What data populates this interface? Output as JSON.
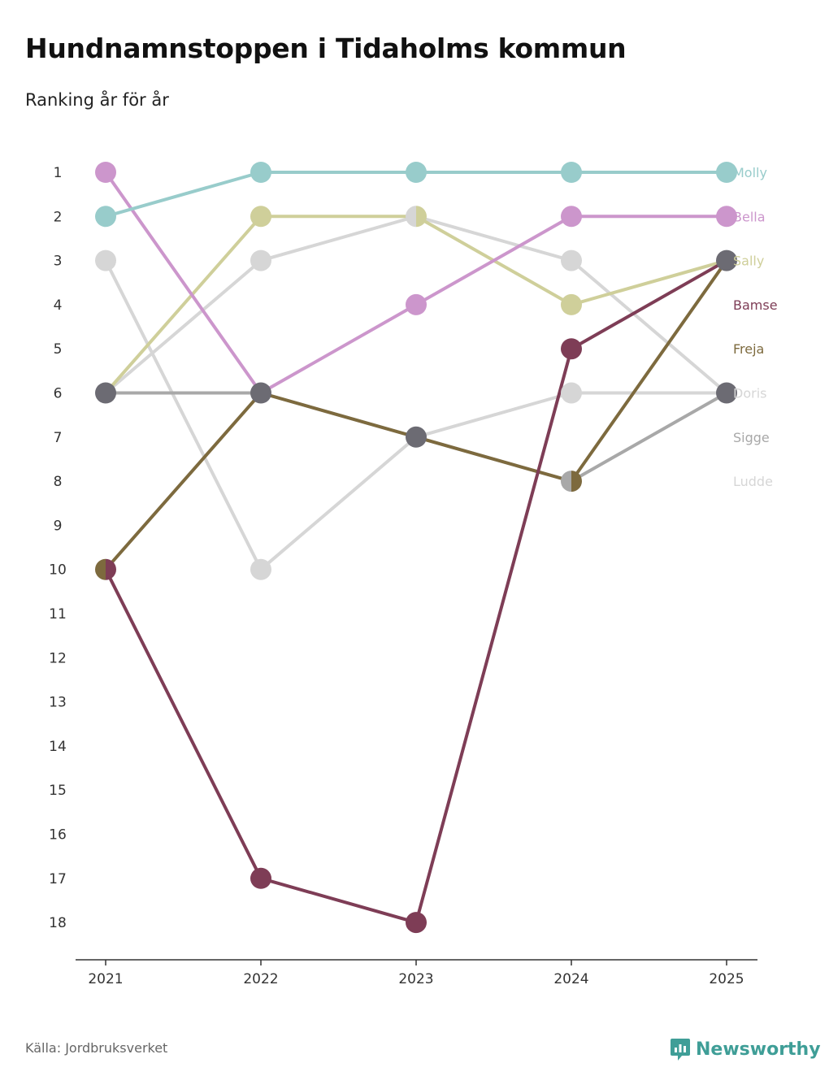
{
  "title": "Hundnamnstoppen i Tidaholms kommun",
  "subtitle": "Ranking år för år",
  "source": "Källa: Jordbruksverket",
  "brand": "Newsworthy",
  "brand_color": "#3f9e97",
  "chart_data": {
    "type": "line",
    "subtype": "bump",
    "title": "Hundnamnstoppen i Tidaholms kommun",
    "subtitle": "Ranking år för år",
    "xlabel": "",
    "ylabel": "",
    "categories": [
      "2021",
      "2022",
      "2023",
      "2024",
      "2025"
    ],
    "y_ticks": [
      "1",
      "2",
      "3",
      "4",
      "5",
      "6",
      "7",
      "8",
      "9",
      "10",
      "11",
      "12",
      "13",
      "14",
      "15",
      "16",
      "17",
      "18"
    ],
    "ylim": [
      1,
      18
    ],
    "y_inverted": true,
    "series": [
      {
        "name": "Ludde",
        "color": "#d6d6d6",
        "values": [
          3,
          10,
          7,
          6,
          6
        ]
      },
      {
        "name": "Doris",
        "color": "#d6d6d6",
        "values": [
          6,
          3,
          2,
          3,
          6
        ]
      },
      {
        "name": "Sigge",
        "color": "#a8a8a8",
        "values": [
          6,
          6,
          7,
          8,
          6
        ]
      },
      {
        "name": "Freja",
        "color": "#7d6a3e",
        "values": [
          10,
          6,
          7,
          8,
          3
        ]
      },
      {
        "name": "Sally",
        "color": "#cfcf9a",
        "values": [
          6,
          2,
          2,
          4,
          3
        ]
      },
      {
        "name": "Bella",
        "color": "#cc96cc",
        "values": [
          1,
          6,
          4,
          2,
          2
        ]
      },
      {
        "name": "Molly",
        "color": "#98cccb",
        "values": [
          2,
          1,
          1,
          1,
          1
        ]
      },
      {
        "name": "Bamse",
        "color": "#7e3d56",
        "values": [
          10,
          17,
          18,
          5,
          3
        ]
      }
    ],
    "end_labels": [
      {
        "name": "Molly",
        "rank": 1
      },
      {
        "name": "Bella",
        "rank": 2
      },
      {
        "name": "Sally",
        "rank": 3
      },
      {
        "name": "Bamse",
        "rank": 4
      },
      {
        "name": "Freja",
        "rank": 5
      },
      {
        "name": "Doris",
        "rank": 6
      },
      {
        "name": "Sigge",
        "rank": 7
      },
      {
        "name": "Ludde",
        "rank": 8
      }
    ],
    "overlap_marker_color": "#6c6b73",
    "legend": "direct-labels-right",
    "grid": false
  }
}
